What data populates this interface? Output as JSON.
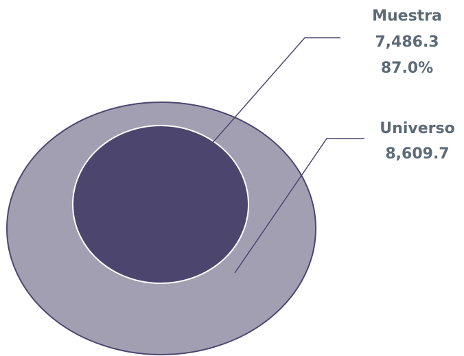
{
  "chart_data": {
    "type": "nested-circles",
    "series": [
      {
        "name": "Muestra",
        "value": 7486.3,
        "value_label": "7,486.3",
        "percent_label": "87.0%",
        "color": "#4c466f"
      },
      {
        "name": "Universo",
        "value": 8609.7,
        "value_label": "8,609.7",
        "color": "#a29fb2"
      }
    ],
    "outline_color": "#4c466f",
    "label_color": "#5d6a78",
    "leader_color": "#4c466f"
  }
}
